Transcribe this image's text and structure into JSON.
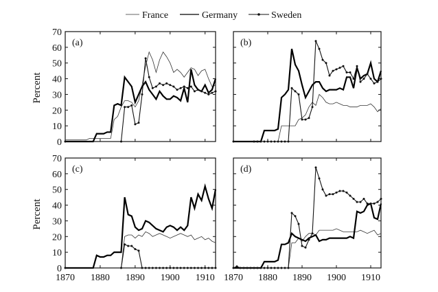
{
  "chart_data": {
    "type": "line",
    "layout": "2x2",
    "legend": {
      "placement": "top",
      "entries": [
        {
          "name": "France",
          "style": "thin"
        },
        {
          "name": "Germany",
          "style": "thick"
        },
        {
          "name": "Sweden",
          "style": "markers"
        }
      ]
    },
    "ylabel": "Percent",
    "xlim": [
      1870,
      1913
    ],
    "ylim": [
      0,
      70
    ],
    "xticks": [
      1870,
      1880,
      1890,
      1900,
      1910
    ],
    "yticks": [
      0,
      10,
      20,
      30,
      40,
      50,
      60,
      70
    ],
    "panels": [
      {
        "label": "(a)",
        "series": [
          {
            "name": "France",
            "x": [
              1870,
              1876,
              1877,
              1878,
              1879,
              1880,
              1881,
              1882,
              1883,
              1884,
              1885,
              1886,
              1887,
              1888,
              1889,
              1890,
              1891,
              1892,
              1893,
              1894,
              1895,
              1896,
              1897,
              1898,
              1899,
              1900,
              1901,
              1902,
              1903,
              1904,
              1905,
              1906,
              1907,
              1908,
              1909,
              1910,
              1911,
              1912,
              1913
            ],
            "y": [
              1,
              1,
              2,
              2,
              2,
              2,
              2,
              2,
              2,
              14,
              16,
              22,
              26,
              26,
              25,
              22,
              26,
              36,
              48,
              57,
              52,
              44,
              52,
              57,
              54,
              50,
              44,
              46,
              44,
              41,
              44,
              47,
              46,
              42,
              45,
              46,
              40,
              35,
              36
            ]
          },
          {
            "name": "Germany",
            "x": [
              1870,
              1878,
              1879,
              1880,
              1881,
              1882,
              1883,
              1884,
              1885,
              1886,
              1887,
              1888,
              1889,
              1890,
              1891,
              1892,
              1893,
              1894,
              1895,
              1896,
              1897,
              1898,
              1899,
              1900,
              1901,
              1902,
              1903,
              1904,
              1905,
              1906,
              1907,
              1908,
              1909,
              1910,
              1911,
              1912,
              1913
            ],
            "y": [
              0,
              0,
              5,
              5,
              5,
              6,
              6,
              23,
              24,
              23,
              41,
              38,
              35,
              25,
              30,
              35,
              38,
              33,
              30,
              27,
              32,
              29,
              27,
              27,
              29,
              28,
              26,
              34,
              25,
              46,
              36,
              33,
              32,
              36,
              31,
              33,
              40
            ]
          },
          {
            "name": "Sweden",
            "x": [
              1870,
              1886,
              1887,
              1888,
              1889,
              1890,
              1891,
              1892,
              1893,
              1894,
              1895,
              1896,
              1897,
              1898,
              1899,
              1900,
              1901,
              1902,
              1903,
              1904,
              1905,
              1906,
              1907,
              1908,
              1909,
              1910,
              1911,
              1912,
              1913
            ],
            "y": [
              0,
              0,
              22,
              22,
              23,
              11,
              12,
              30,
              53,
              41,
              34,
              35,
              37,
              36,
              37,
              36,
              35,
              33,
              34,
              35,
              34,
              35,
              32,
              33,
              32,
              31,
              30,
              31,
              32
            ]
          }
        ]
      },
      {
        "label": "(b)",
        "series": [
          {
            "name": "France",
            "x": [
              1870,
              1876,
              1877,
              1878,
              1879,
              1880,
              1881,
              1882,
              1883,
              1884,
              1885,
              1886,
              1887,
              1888,
              1889,
              1890,
              1891,
              1892,
              1893,
              1894,
              1895,
              1896,
              1897,
              1898,
              1899,
              1900,
              1901,
              1902,
              1903,
              1904,
              1905,
              1906,
              1907,
              1908,
              1909,
              1910,
              1911,
              1912,
              1913
            ],
            "y": [
              0,
              0,
              0,
              0,
              0,
              0,
              0,
              0,
              0,
              10,
              10,
              10,
              10,
              10,
              14,
              15,
              17,
              22,
              25,
              23,
              30,
              28,
              25,
              24,
              24,
              25,
              24,
              23,
              23,
              22,
              22,
              22,
              23,
              23,
              23,
              24,
              22,
              19,
              21
            ]
          },
          {
            "name": "Germany",
            "x": [
              1870,
              1878,
              1879,
              1880,
              1881,
              1882,
              1883,
              1884,
              1885,
              1886,
              1887,
              1888,
              1889,
              1890,
              1891,
              1892,
              1893,
              1894,
              1895,
              1896,
              1897,
              1898,
              1899,
              1900,
              1901,
              1902,
              1903,
              1904,
              1905,
              1906,
              1907,
              1908,
              1909,
              1910,
              1911,
              1912,
              1913
            ],
            "y": [
              0,
              0,
              7,
              7,
              7,
              7,
              8,
              28,
              30,
              33,
              59,
              49,
              45,
              36,
              28,
              32,
              36,
              38,
              38,
              34,
              32,
              33,
              33,
              33,
              34,
              33,
              41,
              41,
              34,
              47,
              40,
              42,
              43,
              50,
              40,
              38,
              45
            ]
          },
          {
            "name": "Sweden",
            "x": [
              1870,
              1876,
              1877,
              1878,
              1879,
              1880,
              1881,
              1882,
              1883,
              1884,
              1885,
              1886,
              1887,
              1888,
              1889,
              1890,
              1891,
              1892,
              1893,
              1894,
              1895,
              1896,
              1897,
              1898,
              1899,
              1900,
              1901,
              1902,
              1903,
              1904,
              1905,
              1906,
              1907,
              1908,
              1909,
              1910,
              1911,
              1912,
              1913
            ],
            "y": [
              0,
              0,
              0,
              0,
              0,
              0,
              0,
              0,
              0,
              0,
              0,
              0,
              34,
              32,
              30,
              14,
              14,
              15,
              22,
              64,
              59,
              52,
              50,
              42,
              45,
              46,
              47,
              48,
              44,
              44,
              40,
              48,
              38,
              40,
              43,
              40,
              37,
              38,
              40
            ]
          }
        ]
      },
      {
        "label": "(c)",
        "series": [
          {
            "name": "France",
            "x": [
              1870,
              1884,
              1885,
              1886,
              1887,
              1888,
              1889,
              1890,
              1891,
              1892,
              1893,
              1894,
              1895,
              1896,
              1897,
              1898,
              1899,
              1900,
              1901,
              1902,
              1903,
              1904,
              1905,
              1906,
              1907,
              1908,
              1909,
              1910,
              1911,
              1912,
              1913
            ],
            "y": [
              0,
              0,
              0,
              0,
              20,
              21,
              21,
              19,
              21,
              20,
              23,
              22,
              20,
              21,
              22,
              21,
              20,
              19,
              20,
              21,
              22,
              21,
              20,
              21,
              18,
              19,
              20,
              18,
              19,
              17,
              16
            ]
          },
          {
            "name": "Germany",
            "x": [
              1870,
              1878,
              1879,
              1880,
              1881,
              1882,
              1883,
              1884,
              1885,
              1886,
              1887,
              1888,
              1889,
              1890,
              1891,
              1892,
              1893,
              1894,
              1895,
              1896,
              1897,
              1898,
              1899,
              1900,
              1901,
              1902,
              1903,
              1904,
              1905,
              1906,
              1907,
              1908,
              1909,
              1910,
              1911,
              1912,
              1913
            ],
            "y": [
              0,
              0,
              8,
              7,
              7,
              8,
              8,
              10,
              10,
              10,
              45,
              34,
              33,
              26,
              24,
              25,
              30,
              29,
              27,
              25,
              24,
              23,
              26,
              27,
              26,
              24,
              26,
              24,
              27,
              45,
              38,
              47,
              43,
              52,
              44,
              38,
              50
            ]
          },
          {
            "name": "Sweden",
            "x": [
              1870,
              1886,
              1887,
              1888,
              1889,
              1890,
              1891,
              1892,
              1893,
              1894,
              1895,
              1896,
              1897,
              1898,
              1899,
              1900,
              1901,
              1902,
              1903,
              1904,
              1905,
              1906,
              1907,
              1908,
              1909,
              1910,
              1911,
              1912,
              1913
            ],
            "y": [
              0,
              0,
              15,
              14,
              14,
              12,
              11,
              0,
              0,
              0,
              0,
              0,
              0,
              0,
              0,
              0,
              0,
              0,
              0,
              0,
              0,
              0,
              0,
              0,
              0,
              0,
              0,
              0,
              0
            ]
          }
        ]
      },
      {
        "label": "(d)",
        "series": [
          {
            "name": "France",
            "x": [
              1870,
              1886,
              1887,
              1888,
              1889,
              1890,
              1891,
              1892,
              1893,
              1894,
              1895,
              1896,
              1897,
              1898,
              1899,
              1900,
              1901,
              1902,
              1903,
              1904,
              1905,
              1906,
              1907,
              1908,
              1909,
              1910,
              1911,
              1912,
              1913
            ],
            "y": [
              0,
              0,
              16,
              16,
              19,
              17,
              20,
              22,
              22,
              21,
              24,
              24,
              24,
              24,
              24,
              25,
              24,
              23,
              23,
              23,
              23,
              23,
              24,
              23,
              22,
              23,
              24,
              21,
              22
            ]
          },
          {
            "name": "Germany",
            "x": [
              1870,
              1878,
              1879,
              1880,
              1881,
              1882,
              1883,
              1884,
              1885,
              1886,
              1887,
              1888,
              1889,
              1890,
              1891,
              1892,
              1893,
              1894,
              1895,
              1896,
              1897,
              1898,
              1899,
              1900,
              1901,
              1902,
              1903,
              1904,
              1905,
              1906,
              1907,
              1908,
              1909,
              1910,
              1911,
              1912,
              1913
            ],
            "y": [
              0,
              0,
              4,
              4,
              4,
              4,
              5,
              15,
              15,
              16,
              22,
              20,
              19,
              18,
              17,
              19,
              20,
              21,
              17,
              18,
              18,
              19,
              19,
              19,
              19,
              19,
              19,
              20,
              19,
              36,
              35,
              36,
              40,
              41,
              32,
              31,
              41
            ]
          },
          {
            "name": "Sweden",
            "x": [
              1870,
              1871,
              1872,
              1873,
              1874,
              1875,
              1876,
              1877,
              1878,
              1879,
              1880,
              1881,
              1882,
              1883,
              1884,
              1885,
              1886,
              1887,
              1888,
              1889,
              1890,
              1891,
              1892,
              1893,
              1894,
              1895,
              1896,
              1897,
              1898,
              1899,
              1900,
              1901,
              1902,
              1903,
              1904,
              1905,
              1906,
              1907,
              1908,
              1909,
              1910,
              1911,
              1912,
              1913
            ],
            "y": [
              0,
              1,
              0,
              0,
              0,
              0,
              0,
              0,
              0,
              0,
              0,
              0,
              0,
              0,
              0,
              0,
              0,
              35,
              33,
              28,
              14,
              13,
              18,
              22,
              64,
              57,
              50,
              46,
              47,
              47,
              48,
              49,
              49,
              48,
              46,
              44,
              42,
              42,
              44,
              41,
              41,
              41,
              42,
              44
            ]
          }
        ]
      }
    ]
  }
}
